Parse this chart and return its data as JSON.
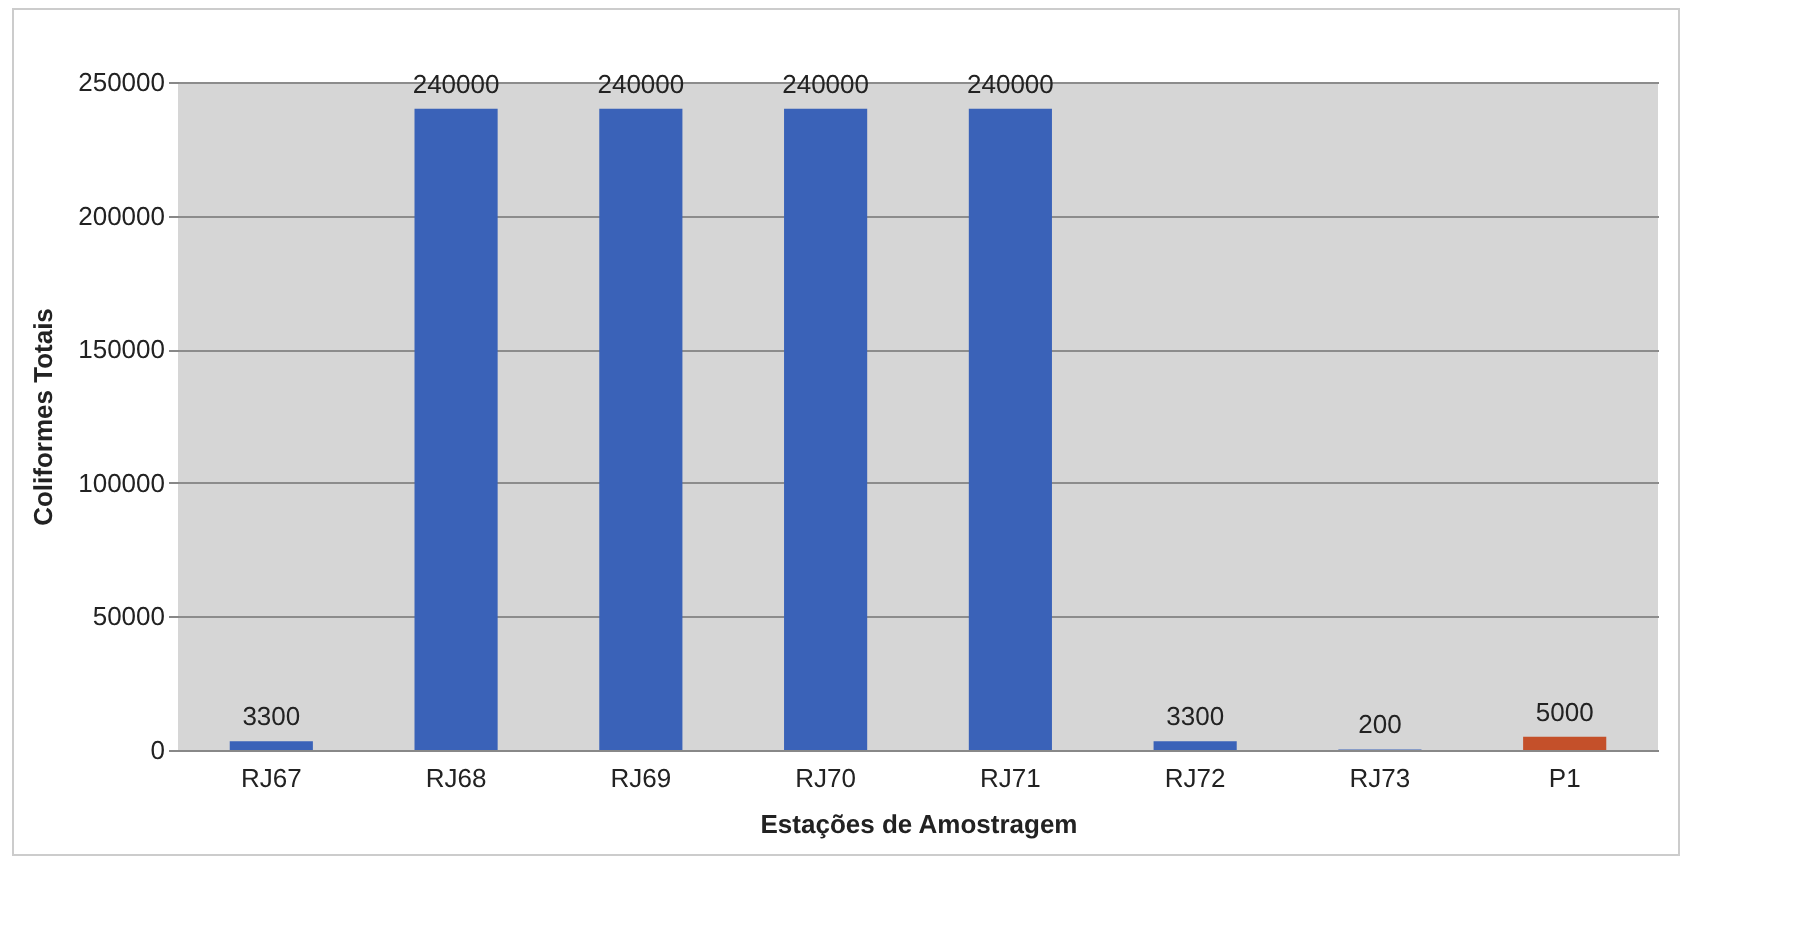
{
  "chart_data": {
    "type": "bar",
    "xlabel": "Estações de Amostragem",
    "ylabel": "Coliformes Totais",
    "categories": [
      "RJ67",
      "RJ68",
      "RJ69",
      "RJ70",
      "RJ71",
      "RJ72",
      "RJ73",
      "P1"
    ],
    "values": [
      3300,
      240000,
      240000,
      240000,
      240000,
      3300,
      200,
      5000
    ],
    "colors": [
      "#3a62b8",
      "#3a62b8",
      "#3a62b8",
      "#3a62b8",
      "#3a62b8",
      "#3a62b8",
      "#3a62b8",
      "#c4502a"
    ],
    "ylim": [
      0,
      250000
    ],
    "yticks": [
      0,
      50000,
      100000,
      150000,
      200000,
      250000
    ],
    "grid": "y",
    "data_labels": true
  }
}
